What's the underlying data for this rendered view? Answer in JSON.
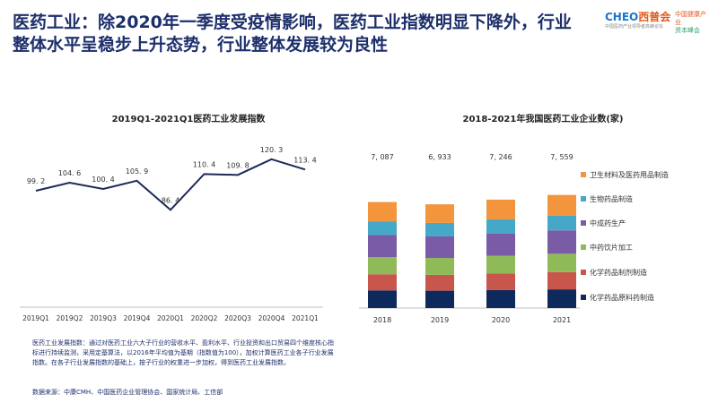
{
  "title": "医药工业：除2020年一季度受疫情影响，医药工业指数明显下降外，行业整体水平呈稳步上升态势，行业整体发展较为良性",
  "logo": {
    "main_latin": "CHEO",
    "main_cn": "西普会",
    "sub": "中国医药产业领导者高峰论坛",
    "right_top": "中国健康产业",
    "right_bottom": "资本峰会"
  },
  "colors": {
    "line": "#1d2a5b",
    "bar_1": "#0e2a5c",
    "bar_2": "#c9564c",
    "bar_3": "#8fba58",
    "bar_4": "#7a5ca6",
    "bar_5": "#46a8c9",
    "bar_6": "#f2953c"
  },
  "chart_data": [
    {
      "type": "line",
      "title": "2019Q1-2021Q1医药工业发展指数",
      "categories": [
        "2019Q1",
        "2019Q2",
        "2019Q3",
        "2019Q4",
        "2020Q1",
        "2020Q2",
        "2020Q3",
        "2020Q4",
        "2021Q1"
      ],
      "values": [
        99.2,
        104.6,
        100.4,
        105.9,
        86.4,
        110.4,
        109.8,
        120.3,
        113.4
      ],
      "labels": [
        "99. 2",
        "104. 6",
        "100. 4",
        "105. 9",
        "86. 4",
        "110. 4",
        "109. 8",
        "120. 3",
        "113. 4"
      ],
      "ylim": [
        80,
        125
      ]
    },
    {
      "type": "bar",
      "stacked": true,
      "title": "2018-2021年我国医药工业企业数(家)",
      "categories": [
        "2018",
        "2019",
        "2020",
        "2021"
      ],
      "totals": [
        7087,
        6933,
        7246,
        7559
      ],
      "total_labels": [
        "7, 087",
        "6, 933",
        "7, 246",
        "7, 559"
      ],
      "series": [
        {
          "name": "化学药品原料药制造",
          "values": [
            1180,
            1160,
            1200,
            1250
          ]
        },
        {
          "name": "化学药品制剂制造",
          "values": [
            1080,
            1060,
            1110,
            1150
          ]
        },
        {
          "name": "中药饮片加工",
          "values": [
            1150,
            1130,
            1180,
            1230
          ]
        },
        {
          "name": "中成药生产",
          "values": [
            1470,
            1440,
            1500,
            1560
          ]
        },
        {
          "name": "生物药品制造",
          "values": [
            920,
            900,
            940,
            980
          ]
        },
        {
          "name": "卫生材料及医药用品制造",
          "values": [
            1287,
            1243,
            1316,
            1389
          ]
        }
      ],
      "legend_position": "right"
    }
  ],
  "footnote": "医药工业发展指数：通过对医药工业六大子行业的营收水平、盈利水平、行业投资和出口贸易四个维度核心指标进行持续监测，采用定基算法，以2016年平均值为基期（指数值为100），加权计算医药工业各子行业发展指数。在各子行业发展指数的基础上，按子行业的权重进一步加权，得到医药工业发展指数。",
  "source": "数据来源：中康CMH、中国医药企业管理协会、国家统计局、工信部"
}
